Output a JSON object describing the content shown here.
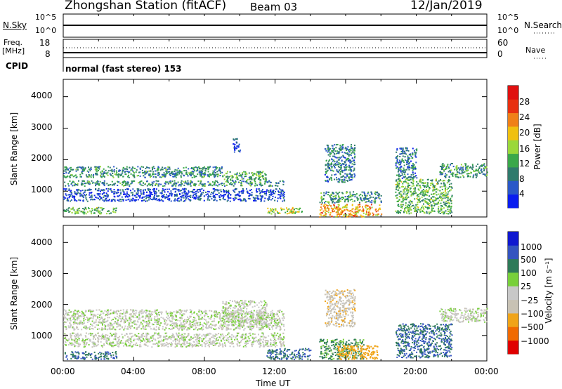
{
  "header": {
    "title": "Zhongshan Station (fitACF)",
    "beam": "Beam 03",
    "date": "12/Jan/2019"
  },
  "top_panel": {
    "nsky_label": "N.Sky",
    "nsearch_label": "N.Search",
    "left_ticks": [
      "10^5",
      "10^0"
    ],
    "right_ticks": [
      "10^5",
      "10^0"
    ],
    "freq_label": "Freq.",
    "freq_unit": "[MHz]",
    "freq_ticks": [
      "18",
      "8"
    ],
    "nave_ticks": [
      "60",
      "0"
    ],
    "nave_label": "Nave",
    "cpid_label": "CPID",
    "cpid_value": "normal (fast stereo) 153"
  },
  "colors": {
    "power_scale": [
      "#0a1df0",
      "#2a58c8",
      "#2f7a6c",
      "#3aa84a",
      "#9ad83a",
      "#f0c010",
      "#f08018",
      "#e83010",
      "#e01010"
    ],
    "velocity_scale": [
      "#e00000",
      "#f06a00",
      "#f0a418",
      "#c8c2b4",
      "#c8c8c8",
      "#78d03a",
      "#2e7a58",
      "#3454c0",
      "#1018d0"
    ]
  },
  "chart_data": [
    {
      "type": "heatmap",
      "panel": "power",
      "ylabel": "Slant Range [km]",
      "ylim": [
        180,
        4550
      ],
      "yticks": [
        "1000",
        "2000",
        "3000",
        "4000"
      ],
      "xlim_hours": [
        0,
        24
      ],
      "colorbar": {
        "label": "Power [dB]",
        "ticks": [
          "4",
          "8",
          "12",
          "16",
          "20",
          "24",
          "28"
        ],
        "range": [
          0,
          30
        ]
      },
      "features": [
        {
          "t": [
            0.0,
            9.0
          ],
          "r": [
            1450,
            1800
          ],
          "level": 9
        },
        {
          "t": [
            9.0,
            11.5
          ],
          "r": [
            1350,
            1650
          ],
          "level": 11
        },
        {
          "t": [
            0.0,
            12.5
          ],
          "r": [
            1180,
            1350
          ],
          "level": 9
        },
        {
          "t": [
            0.0,
            12.5
          ],
          "r": [
            700,
            1100
          ],
          "level": 4
        },
        {
          "t": [
            0.0,
            3.0
          ],
          "r": [
            300,
            500
          ],
          "level": 12
        },
        {
          "t": [
            11.5,
            13.5
          ],
          "r": [
            300,
            500
          ],
          "level": 16
        },
        {
          "t": [
            14.5,
            18.0
          ],
          "r": [
            200,
            600
          ],
          "level": 20
        },
        {
          "t": [
            14.5,
            18.0
          ],
          "r": [
            650,
            1000
          ],
          "level": 10
        },
        {
          "t": [
            14.8,
            16.5
          ],
          "r": [
            1300,
            2500
          ],
          "level": 8
        },
        {
          "t": [
            18.8,
            22.0
          ],
          "r": [
            300,
            1400
          ],
          "level": 12
        },
        {
          "t": [
            18.8,
            20.0
          ],
          "r": [
            1400,
            2400
          ],
          "level": 7
        },
        {
          "t": [
            21.3,
            24.0
          ],
          "r": [
            1450,
            1900
          ],
          "level": 10
        },
        {
          "t": [
            9.6,
            10.0
          ],
          "r": [
            2200,
            2700
          ],
          "level": 5
        }
      ]
    },
    {
      "type": "heatmap",
      "panel": "velocity",
      "ylabel": "Slant Range [km]",
      "ylim": [
        180,
        4550
      ],
      "yticks": [
        "1000",
        "2000",
        "3000",
        "4000"
      ],
      "xlabel": "Time UT",
      "xticks": [
        "00:00",
        "04:00",
        "08:00",
        "12:00",
        "16:00",
        "20:00",
        "00:00"
      ],
      "colorbar": {
        "label": "Velocity [m s⁻¹]",
        "ticks": [
          "1000",
          "500",
          "100",
          "25",
          "−25",
          "−100",
          "−500",
          "−1000"
        ]
      },
      "features": [
        {
          "t": [
            0.0,
            12.5
          ],
          "r": [
            1200,
            1850
          ],
          "velocity": 0
        },
        {
          "t": [
            9.0,
            11.5
          ],
          "r": [
            1350,
            2150
          ],
          "velocity": 0
        },
        {
          "t": [
            0.0,
            12.5
          ],
          "r": [
            650,
            1100
          ],
          "velocity": 0
        },
        {
          "t": [
            0.0,
            3.0
          ],
          "r": [
            250,
            500
          ],
          "velocity": 150
        },
        {
          "t": [
            11.5,
            14.0
          ],
          "r": [
            250,
            600
          ],
          "velocity": 150
        },
        {
          "t": [
            14.5,
            17.0
          ],
          "r": [
            250,
            900
          ],
          "velocity": 80
        },
        {
          "t": [
            15.5,
            17.8
          ],
          "r": [
            250,
            700
          ],
          "velocity": -200
        },
        {
          "t": [
            14.8,
            16.5
          ],
          "r": [
            1300,
            2500
          ],
          "velocity": -60
        },
        {
          "t": [
            18.8,
            22.0
          ],
          "r": [
            300,
            1400
          ],
          "velocity": 150
        },
        {
          "t": [
            21.3,
            24.0
          ],
          "r": [
            1450,
            1900
          ],
          "velocity": 0
        }
      ]
    }
  ]
}
